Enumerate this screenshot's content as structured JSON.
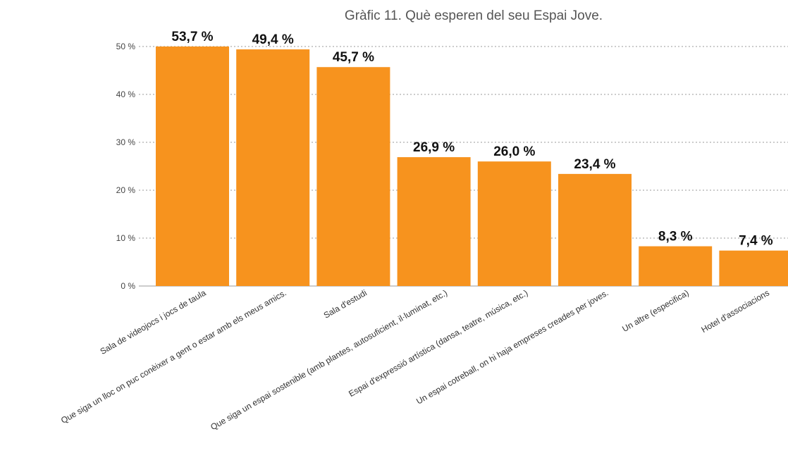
{
  "chart_data": {
    "type": "bar",
    "title": "Gràfic 11. Què esperen del seu Espai Jove.",
    "xlabel": "",
    "ylabel": "",
    "categories": [
      "Sala de videojocs i jocs de taula",
      "Que siga un lloc on puc conèixer a gent o estar amb els meus amics.",
      "Sala d'estudi",
      "Que siga un espai sostenible (amb plantes, autosuficient, il·luminat, etc.)",
      "Espai d'expressió artística (dansa, teatre, música, etc.)",
      "Un espai cotreball, on hi haja empreses creades per joves.",
      "Un altre (especifica)",
      "Hotel d'associacions"
    ],
    "values": [
      53.7,
      49.4,
      45.7,
      26.9,
      26.0,
      23.4,
      8.3,
      7.4
    ],
    "value_labels": [
      "53,7 %",
      "49,4 %",
      "45,7 %",
      "26,9 %",
      "26,0 %",
      "23,4 %",
      "8,3 %",
      "7,4 %"
    ],
    "ylim": [
      0,
      50
    ],
    "yticks": [
      0,
      10,
      20,
      30,
      40,
      50
    ],
    "ytick_labels": [
      "0 %",
      "10 %",
      "20 %",
      "30 %",
      "40 %",
      "50 %"
    ],
    "grid": true,
    "colors": {
      "bar": "#F7931E"
    }
  }
}
